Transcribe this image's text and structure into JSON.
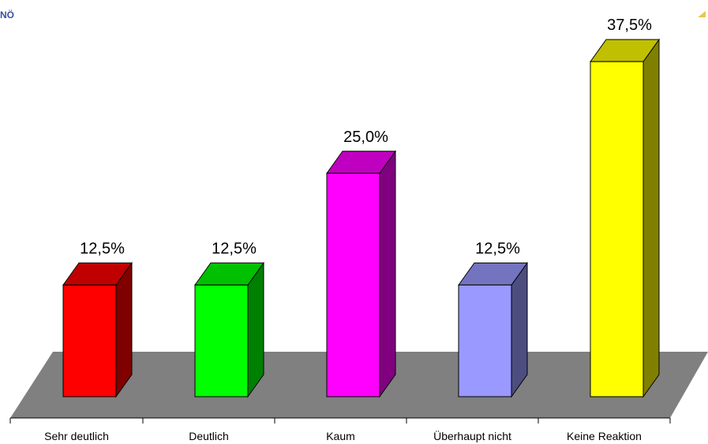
{
  "header": {
    "logo_text": "NÖ"
  },
  "chart_data": {
    "type": "bar",
    "categories": [
      "Sehr deutlich",
      "Deutlich",
      "Kaum",
      "Überhaupt nicht",
      "Keine Reaktion"
    ],
    "values": [
      12.5,
      12.5,
      25.0,
      12.5,
      37.5
    ],
    "value_labels": [
      "12,5%",
      "12,5%",
      "25,0%",
      "12,5%",
      "37,5%"
    ],
    "unit": "%",
    "style": "3d-column",
    "colors": {
      "front": [
        "#ff0000",
        "#00ff00",
        "#ff00ff",
        "#9999ff",
        "#ffff00"
      ],
      "top": [
        "#c00000",
        "#00c000",
        "#c000c0",
        "#7373c0",
        "#c0c000"
      ],
      "side": [
        "#800000",
        "#008000",
        "#800080",
        "#4d4d80",
        "#808000"
      ],
      "floor": "#808080"
    },
    "grid": false,
    "legend": "none"
  }
}
